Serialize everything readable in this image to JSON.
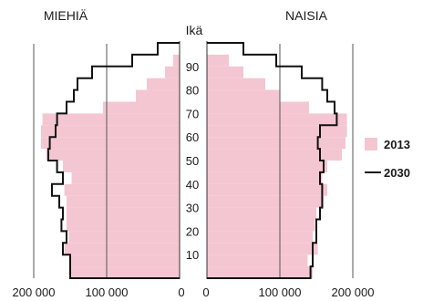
{
  "chart_data": {
    "type": "bar",
    "subtype": "population-pyramid",
    "orientation": "horizontal",
    "left_title": "MIEHIÄ",
    "right_title": "NAISIA",
    "age_axis_label": "Ikä",
    "age_ticks": [
      "10",
      "20",
      "30",
      "40",
      "50",
      "60",
      "70",
      "80",
      "90"
    ],
    "x_ticks": {
      "left": [
        "200 000",
        "100 000",
        "0"
      ],
      "right": [
        "0",
        "100 000",
        "200 000"
      ]
    },
    "age_range": [
      0,
      100
    ],
    "age_step": 5,
    "xlim": [
      0,
      200000
    ],
    "grid": "vertical lines at 100 000 and 200 000",
    "legend_position": "right",
    "colors": {
      "2013": "#f4c6d2",
      "2030": "#111111"
    },
    "series": [
      {
        "name": "2013",
        "style": "filled",
        "age_groups_start": [
          0,
          5,
          10,
          15,
          20,
          25,
          30,
          35,
          40,
          45,
          50,
          55,
          60,
          65,
          70,
          75,
          80,
          85,
          90,
          95
        ],
        "men": [
          151000,
          150000,
          158000,
          152000,
          155000,
          155000,
          155000,
          158000,
          148000,
          160000,
          183000,
          190000,
          190000,
          188000,
          105000,
          60000,
          45000,
          20000,
          9000,
          0
        ],
        "women": [
          145000,
          138000,
          152000,
          145000,
          148000,
          150000,
          160000,
          165000,
          158000,
          165000,
          185000,
          190000,
          192000,
          192000,
          140000,
          100000,
          80000,
          50000,
          30000,
          0
        ]
      },
      {
        "name": "2030",
        "style": "outline",
        "age_groups_start": [
          0,
          5,
          10,
          15,
          20,
          25,
          30,
          35,
          40,
          45,
          50,
          55,
          60,
          65,
          70,
          75,
          80,
          85,
          90,
          95
        ],
        "men": [
          150000,
          150000,
          160000,
          155000,
          162000,
          160000,
          165000,
          175000,
          160000,
          168000,
          180000,
          178000,
          170000,
          168000,
          155000,
          145000,
          140000,
          120000,
          65000,
          30000
        ],
        "women": [
          142000,
          145000,
          145000,
          150000,
          150000,
          155000,
          158000,
          158000,
          155000,
          160000,
          155000,
          152000,
          155000,
          178000,
          175000,
          165000,
          158000,
          130000,
          95000,
          50000
        ]
      }
    ]
  }
}
